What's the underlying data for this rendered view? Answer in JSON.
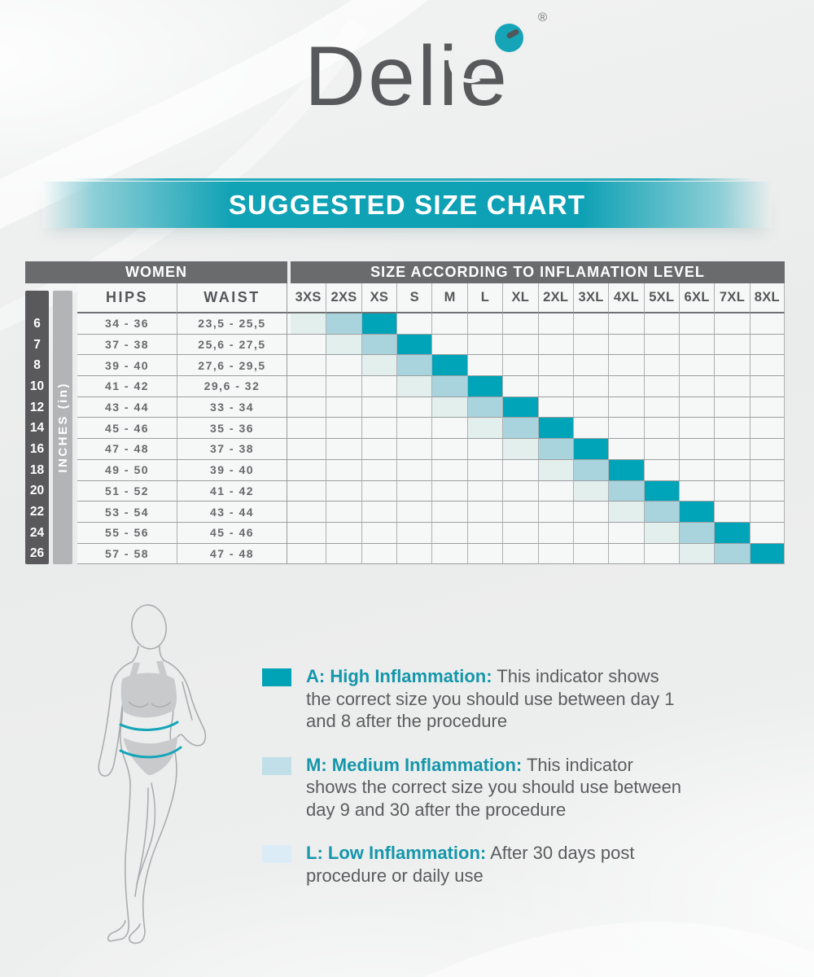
{
  "logo": {
    "text_head": "Deli",
    "text_tail": "e",
    "registered": "®"
  },
  "colors": {
    "high": "#00a4b8",
    "medium": "#a9d4de",
    "low": "#e3efed",
    "accent": "#12a3b6"
  },
  "chart_data": {
    "type": "table",
    "title": "SUGGESTED SIZE CHART",
    "group_headers": [
      "WOMEN",
      "SIZE ACCORDING TO INFLAMATION LEVEL"
    ],
    "columns": [
      "HIPS",
      "WAIST",
      "3XS",
      "2XS",
      "XS",
      "S",
      "M",
      "L",
      "XL",
      "2XL",
      "3XL",
      "4XL",
      "5XL",
      "6XL",
      "7XL",
      "8XL"
    ],
    "row_axis_label": "INCHES (in)",
    "rows": [
      {
        "inches": "6",
        "hips": "34 - 36",
        "waist": "23,5 - 25,5",
        "low": "3XS",
        "medium": "2XS",
        "high": "XS"
      },
      {
        "inches": "7",
        "hips": "37 - 38",
        "waist": "25,6 - 27,5",
        "low": "2XS",
        "medium": "XS",
        "high": "S"
      },
      {
        "inches": "8",
        "hips": "39 - 40",
        "waist": "27,6 - 29,5",
        "low": "XS",
        "medium": "S",
        "high": "M"
      },
      {
        "inches": "10",
        "hips": "41 - 42",
        "waist": "29,6 - 32",
        "low": "S",
        "medium": "M",
        "high": "L"
      },
      {
        "inches": "12",
        "hips": "43 - 44",
        "waist": "33 - 34",
        "low": "M",
        "medium": "L",
        "high": "XL"
      },
      {
        "inches": "14",
        "hips": "45 - 46",
        "waist": "35 - 36",
        "low": "L",
        "medium": "XL",
        "high": "2XL"
      },
      {
        "inches": "16",
        "hips": "47 - 48",
        "waist": "37 - 38",
        "low": "XL",
        "medium": "2XL",
        "high": "3XL"
      },
      {
        "inches": "18",
        "hips": "49 - 50",
        "waist": "39 - 40",
        "low": "2XL",
        "medium": "3XL",
        "high": "4XL"
      },
      {
        "inches": "20",
        "hips": "51 - 52",
        "waist": "41 - 42",
        "low": "3XL",
        "medium": "4XL",
        "high": "5XL"
      },
      {
        "inches": "22",
        "hips": "53 - 54",
        "waist": "43 - 44",
        "low": "4XL",
        "medium": "5XL",
        "high": "6XL"
      },
      {
        "inches": "24",
        "hips": "55 - 56",
        "waist": "45 - 46",
        "low": "5XL",
        "medium": "6XL",
        "high": "7XL"
      },
      {
        "inches": "26",
        "hips": "57 - 58",
        "waist": "47 - 48",
        "low": "6XL",
        "medium": "7XL",
        "high": "8XL"
      }
    ],
    "legend": [
      {
        "key": "A",
        "color": "#00a2b6",
        "title": "A: High Inflammation:",
        "text": "This indicator shows the correct size you should use between day 1 and 8 after the procedure"
      },
      {
        "key": "M",
        "color": "#c0dfe9",
        "title": "M: Medium Inflammation:",
        "text": "This indicator shows the correct size you should use between day 9 and 30 after the procedure"
      },
      {
        "key": "L",
        "color": "#dcecf6",
        "title": "L: Low Inflammation:",
        "text": "After 30 days post procedure or daily use"
      }
    ]
  }
}
